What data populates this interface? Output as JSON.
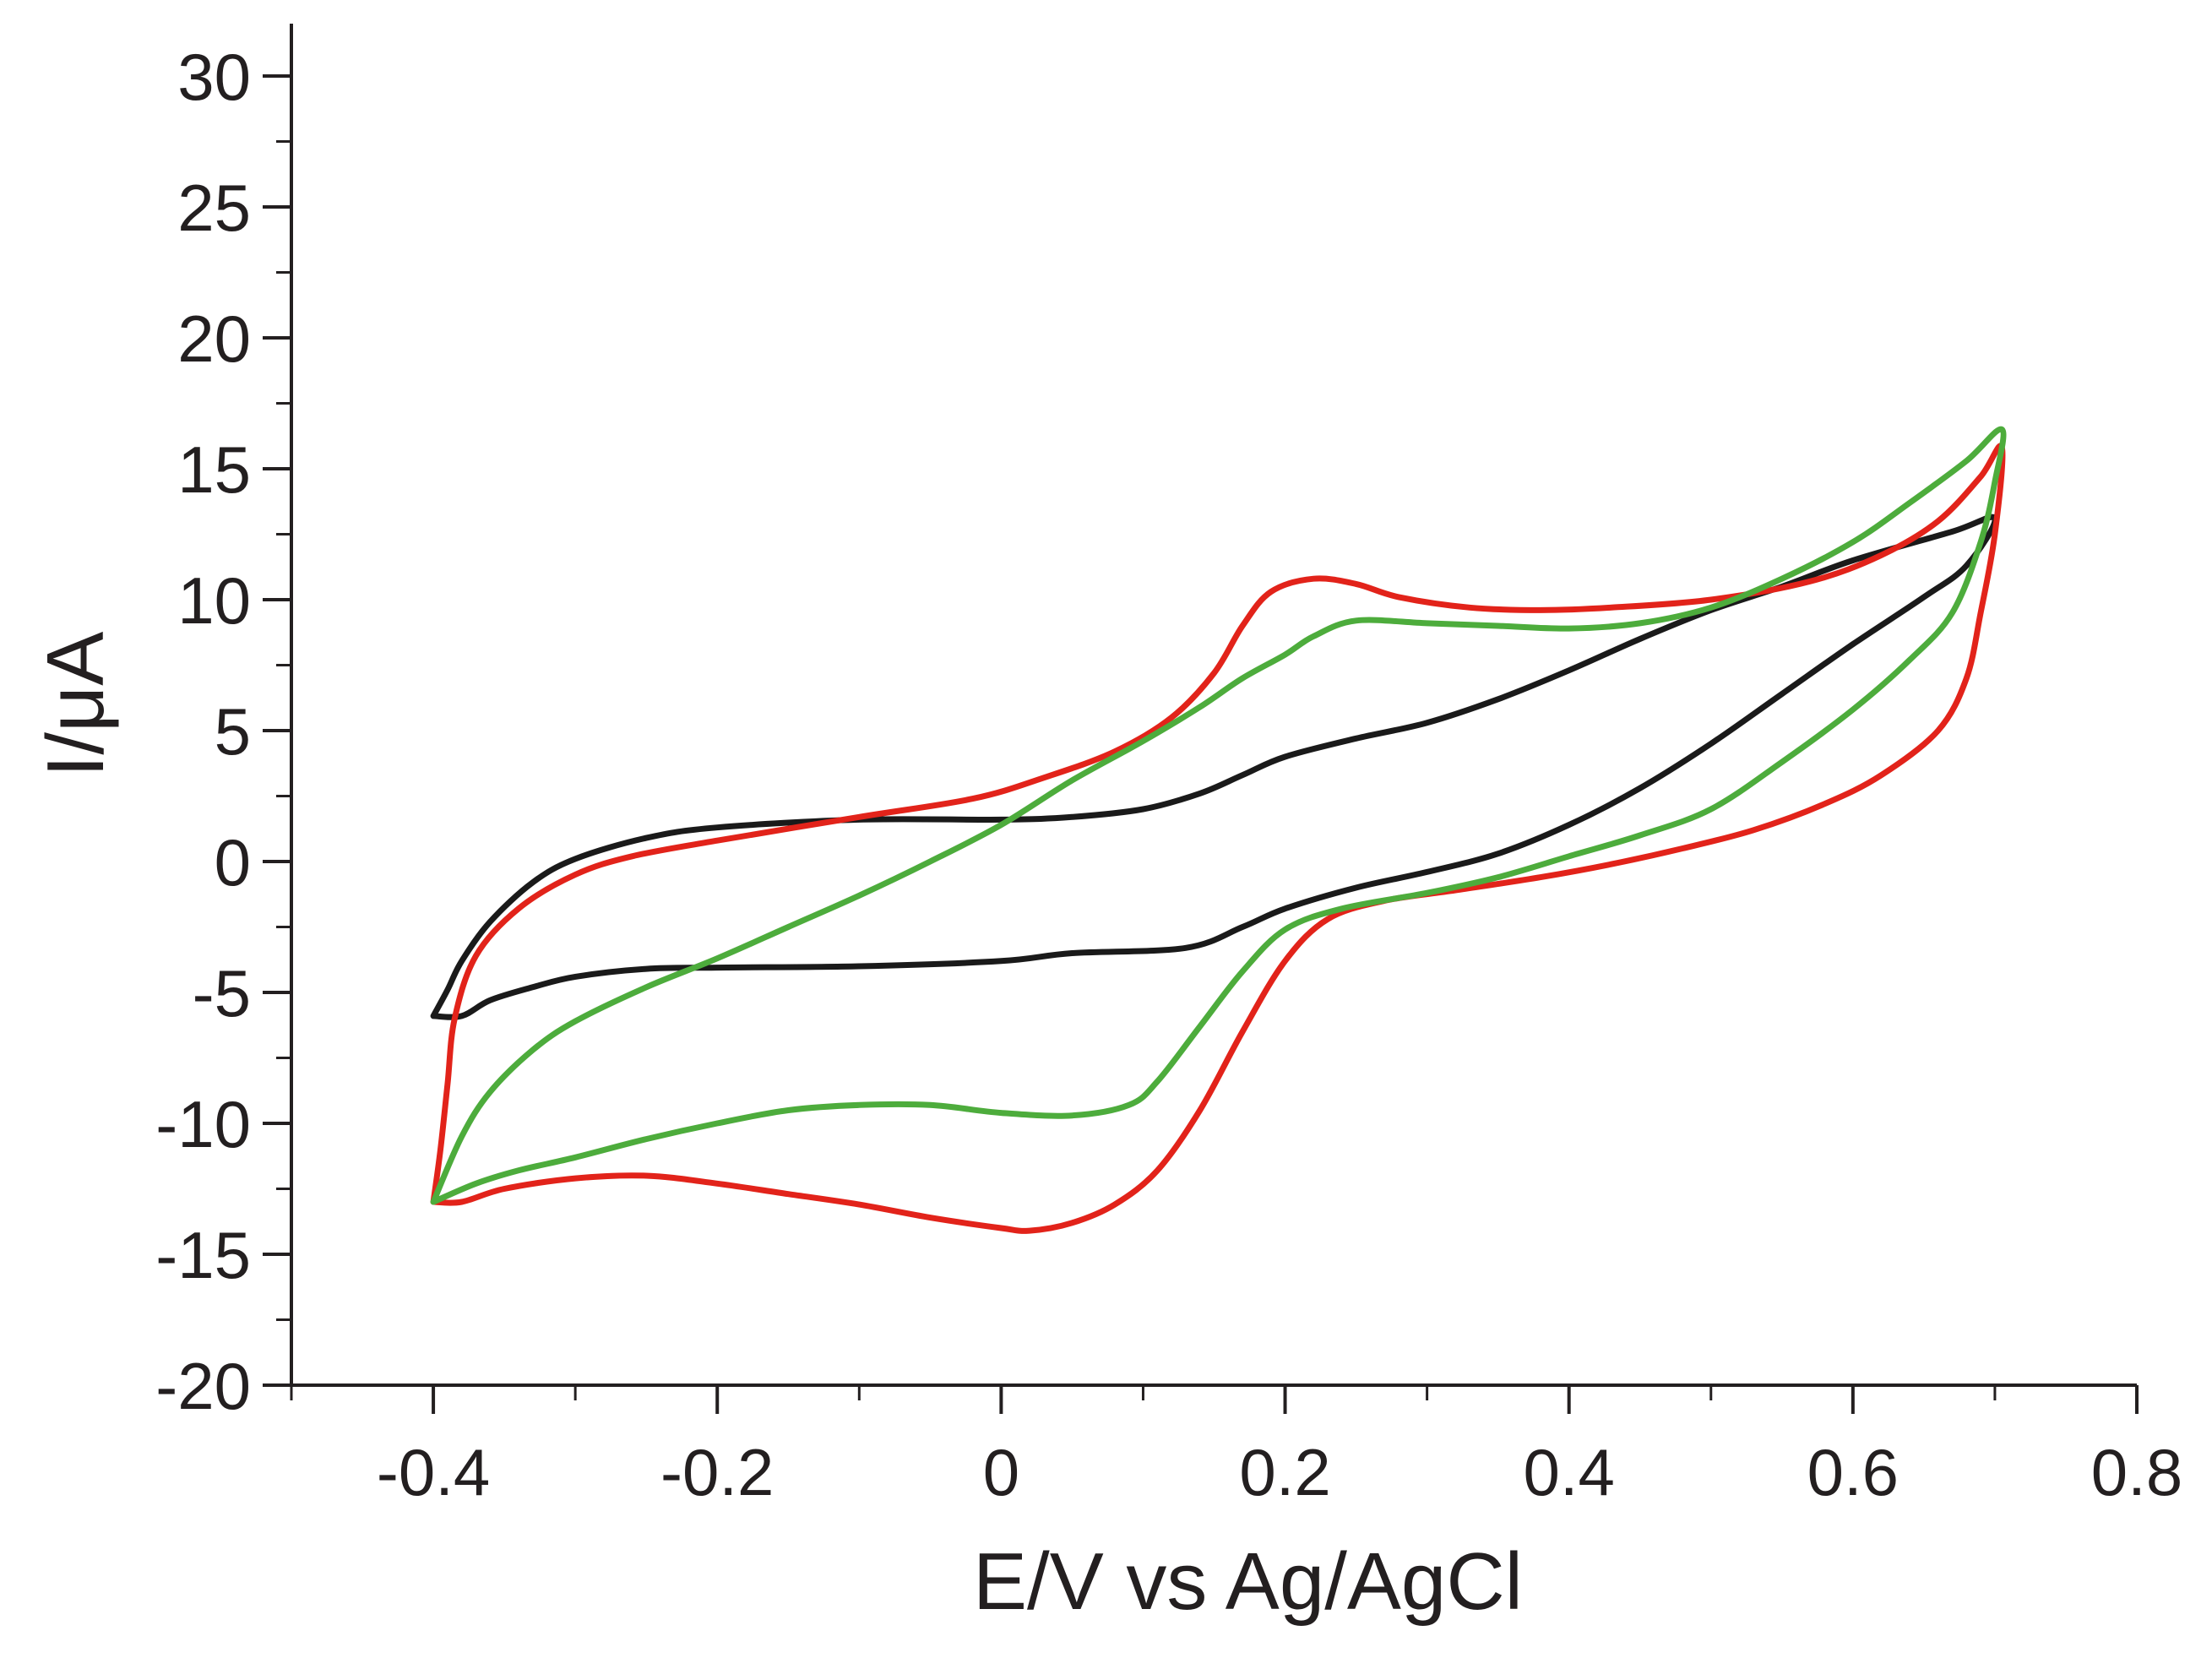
{
  "chart_data": {
    "type": "line",
    "title": "",
    "xlabel": "E/V vs Ag/AgCl",
    "ylabel": "I/μA",
    "xlim": [
      -0.5,
      0.8
    ],
    "ylim": [
      -20,
      32
    ],
    "x_ticks": [
      -0.4,
      -0.2,
      0,
      0.2,
      0.4,
      0.6,
      0.8
    ],
    "x_tick_labels": [
      "-0.4",
      "-0.2",
      "0",
      "0.2",
      "0.4",
      "0.6",
      "0.8"
    ],
    "y_ticks": [
      -20,
      -15,
      -10,
      -5,
      0,
      5,
      10,
      15,
      20,
      25,
      30
    ],
    "y_tick_labels": [
      "-20",
      "-15",
      "-10",
      "-5",
      "0",
      "5",
      "10",
      "15",
      "20",
      "25",
      "30"
    ],
    "grid": false,
    "legend": "none",
    "series": [
      {
        "name": "black",
        "color": "#1a1a1a",
        "points": [
          [
            -0.4,
            -5.9
          ],
          [
            -0.38,
            -5.9
          ],
          [
            -0.36,
            -5.3
          ],
          [
            -0.33,
            -4.8
          ],
          [
            -0.3,
            -4.4
          ],
          [
            -0.25,
            -4.1
          ],
          [
            -0.2,
            -4.05
          ],
          [
            -0.1,
            -4.0
          ],
          [
            0.0,
            -3.8
          ],
          [
            0.05,
            -3.5
          ],
          [
            0.13,
            -3.3
          ],
          [
            0.17,
            -2.5
          ],
          [
            0.2,
            -1.8
          ],
          [
            0.25,
            -1.0
          ],
          [
            0.3,
            -0.4
          ],
          [
            0.35,
            0.3
          ],
          [
            0.4,
            1.4
          ],
          [
            0.45,
            2.8
          ],
          [
            0.5,
            4.5
          ],
          [
            0.55,
            6.4
          ],
          [
            0.6,
            8.3
          ],
          [
            0.65,
            10.1
          ],
          [
            0.68,
            11.3
          ],
          [
            0.7,
            13.1
          ],
          [
            0.67,
            12.6
          ],
          [
            0.6,
            11.5
          ],
          [
            0.55,
            10.5
          ],
          [
            0.5,
            9.6
          ],
          [
            0.45,
            8.5
          ],
          [
            0.4,
            7.3
          ],
          [
            0.35,
            6.2
          ],
          [
            0.3,
            5.3
          ],
          [
            0.25,
            4.7
          ],
          [
            0.2,
            4.0
          ],
          [
            0.17,
            3.3
          ],
          [
            0.14,
            2.6
          ],
          [
            0.1,
            2.0
          ],
          [
            0.05,
            1.7
          ],
          [
            0.0,
            1.6
          ],
          [
            -0.1,
            1.6
          ],
          [
            -0.2,
            1.3
          ],
          [
            -0.25,
            0.9
          ],
          [
            -0.3,
            0.1
          ],
          [
            -0.33,
            -0.8
          ],
          [
            -0.36,
            -2.3
          ],
          [
            -0.38,
            -3.8
          ],
          [
            -0.39,
            -4.9
          ],
          [
            -0.4,
            -5.9
          ]
        ]
      },
      {
        "name": "red",
        "color": "#e2231a",
        "points": [
          [
            -0.4,
            -13.0
          ],
          [
            -0.38,
            -13.0
          ],
          [
            -0.35,
            -12.5
          ],
          [
            -0.3,
            -12.1
          ],
          [
            -0.25,
            -12.0
          ],
          [
            -0.2,
            -12.3
          ],
          [
            -0.15,
            -12.7
          ],
          [
            -0.1,
            -13.1
          ],
          [
            -0.05,
            -13.6
          ],
          [
            0.0,
            -14.0
          ],
          [
            0.02,
            -14.1
          ],
          [
            0.05,
            -13.8
          ],
          [
            0.08,
            -13.1
          ],
          [
            0.11,
            -11.8
          ],
          [
            0.14,
            -9.5
          ],
          [
            0.17,
            -6.5
          ],
          [
            0.2,
            -3.8
          ],
          [
            0.23,
            -2.2
          ],
          [
            0.27,
            -1.5
          ],
          [
            0.32,
            -1.1
          ],
          [
            0.38,
            -0.6
          ],
          [
            0.43,
            -0.1
          ],
          [
            0.48,
            0.5
          ],
          [
            0.53,
            1.2
          ],
          [
            0.58,
            2.2
          ],
          [
            0.62,
            3.3
          ],
          [
            0.66,
            5.0
          ],
          [
            0.68,
            7.0
          ],
          [
            0.69,
            9.5
          ],
          [
            0.7,
            12.5
          ],
          [
            0.705,
            15.8
          ],
          [
            0.69,
            14.7
          ],
          [
            0.66,
            13.0
          ],
          [
            0.62,
            11.7
          ],
          [
            0.57,
            10.7
          ],
          [
            0.5,
            10.0
          ],
          [
            0.43,
            9.7
          ],
          [
            0.38,
            9.6
          ],
          [
            0.33,
            9.7
          ],
          [
            0.28,
            10.1
          ],
          [
            0.25,
            10.6
          ],
          [
            0.22,
            10.8
          ],
          [
            0.19,
            10.3
          ],
          [
            0.17,
            9.0
          ],
          [
            0.15,
            7.2
          ],
          [
            0.12,
            5.5
          ],
          [
            0.08,
            4.2
          ],
          [
            0.03,
            3.2
          ],
          [
            -0.02,
            2.4
          ],
          [
            -0.1,
            1.7
          ],
          [
            -0.2,
            0.8
          ],
          [
            -0.26,
            0.2
          ],
          [
            -0.3,
            -0.5
          ],
          [
            -0.34,
            -1.8
          ],
          [
            -0.37,
            -3.6
          ],
          [
            -0.385,
            -6.0
          ],
          [
            -0.39,
            -8.5
          ],
          [
            -0.395,
            -11.0
          ],
          [
            -0.4,
            -13.0
          ]
        ]
      },
      {
        "name": "green",
        "color": "#4dac3c",
        "points": [
          [
            -0.4,
            -13.0
          ],
          [
            -0.37,
            -12.3
          ],
          [
            -0.34,
            -11.8
          ],
          [
            -0.3,
            -11.3
          ],
          [
            -0.25,
            -10.6
          ],
          [
            -0.2,
            -10.0
          ],
          [
            -0.15,
            -9.5
          ],
          [
            -0.1,
            -9.3
          ],
          [
            -0.05,
            -9.3
          ],
          [
            0.0,
            -9.6
          ],
          [
            0.05,
            -9.7
          ],
          [
            0.09,
            -9.3
          ],
          [
            0.11,
            -8.4
          ],
          [
            0.14,
            -6.3
          ],
          [
            0.17,
            -4.2
          ],
          [
            0.2,
            -2.6
          ],
          [
            0.24,
            -1.8
          ],
          [
            0.3,
            -1.2
          ],
          [
            0.35,
            -0.6
          ],
          [
            0.4,
            0.2
          ],
          [
            0.45,
            1.0
          ],
          [
            0.5,
            2.0
          ],
          [
            0.55,
            3.8
          ],
          [
            0.6,
            5.8
          ],
          [
            0.64,
            7.7
          ],
          [
            0.67,
            9.5
          ],
          [
            0.69,
            12.2
          ],
          [
            0.7,
            14.5
          ],
          [
            0.705,
            16.5
          ],
          [
            0.68,
            15.3
          ],
          [
            0.64,
            13.7
          ],
          [
            0.6,
            12.2
          ],
          [
            0.55,
            10.8
          ],
          [
            0.5,
            9.7
          ],
          [
            0.45,
            9.1
          ],
          [
            0.4,
            8.9
          ],
          [
            0.35,
            9.0
          ],
          [
            0.3,
            9.1
          ],
          [
            0.25,
            9.2
          ],
          [
            0.22,
            8.6
          ],
          [
            0.2,
            7.9
          ],
          [
            0.17,
            7.0
          ],
          [
            0.14,
            5.9
          ],
          [
            0.1,
            4.6
          ],
          [
            0.05,
            3.1
          ],
          [
            0.0,
            1.4
          ],
          [
            -0.05,
            0.0
          ],
          [
            -0.1,
            -1.3
          ],
          [
            -0.15,
            -2.5
          ],
          [
            -0.2,
            -3.7
          ],
          [
            -0.25,
            -4.8
          ],
          [
            -0.3,
            -6.1
          ],
          [
            -0.33,
            -7.2
          ],
          [
            -0.36,
            -8.8
          ],
          [
            -0.38,
            -10.5
          ],
          [
            -0.4,
            -13.0
          ]
        ]
      }
    ]
  }
}
